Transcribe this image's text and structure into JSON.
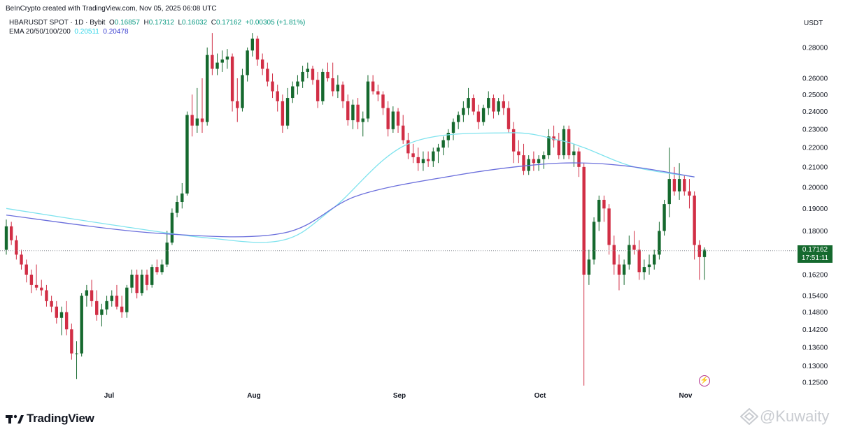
{
  "credit": "BeInCrypto created with TradingView.com, Nov 05, 2025 06:08 UTC",
  "legend": {
    "symbol": "HBARUSDT SPOT · 1D · Bybit",
    "open_label": "O",
    "open": "0.16857",
    "high_label": "H",
    "high": "0.17312",
    "low_label": "L",
    "low": "0.16032",
    "close_label": "C",
    "close": "0.17162",
    "change": "+0.00305 (+1.81%)",
    "ema_label": "EMA 20/50/100/200",
    "ema_a": "0.20511",
    "ema_b": "0.20478"
  },
  "currency": "USDT",
  "last_price": "0.17162",
  "countdown": "17:51:11",
  "brand": "TradingView",
  "watermark": "@Kuwaity",
  "colors": {
    "up": "#15692e",
    "down": "#d12e45",
    "ema_fast": "#7fe3ee",
    "ema_slow": "#6b6fdc"
  },
  "chart_data": {
    "type": "candlestick",
    "y_axis_scale": "log",
    "y_ticks": [
      "0.28000",
      "0.26000",
      "0.25000",
      "0.24000",
      "0.23000",
      "0.22000",
      "0.21000",
      "0.20000",
      "0.19000",
      "0.18000",
      "0.16200",
      "0.15400",
      "0.14800",
      "0.14200",
      "0.13600",
      "0.13000",
      "0.12500"
    ],
    "x_ticks": [
      "Jul",
      "Aug",
      "Sep",
      "Oct",
      "Nov"
    ],
    "candles": [
      [
        0.172,
        0.185,
        0.17,
        0.182
      ],
      [
        0.182,
        0.184,
        0.174,
        0.176
      ],
      [
        0.176,
        0.178,
        0.168,
        0.17
      ],
      [
        0.17,
        0.172,
        0.164,
        0.166
      ],
      [
        0.166,
        0.168,
        0.159,
        0.162
      ],
      [
        0.162,
        0.164,
        0.155,
        0.158
      ],
      [
        0.158,
        0.166,
        0.156,
        0.157
      ],
      [
        0.157,
        0.16,
        0.154,
        0.156
      ],
      [
        0.156,
        0.158,
        0.15,
        0.152
      ],
      [
        0.152,
        0.154,
        0.148,
        0.15
      ],
      [
        0.15,
        0.152,
        0.144,
        0.146
      ],
      [
        0.146,
        0.15,
        0.14,
        0.148
      ],
      [
        0.148,
        0.152,
        0.14,
        0.142
      ],
      [
        0.142,
        0.144,
        0.132,
        0.134
      ],
      [
        0.134,
        0.138,
        0.126,
        0.134
      ],
      [
        0.134,
        0.155,
        0.133,
        0.154
      ],
      [
        0.154,
        0.158,
        0.15,
        0.156
      ],
      [
        0.156,
        0.16,
        0.15,
        0.152
      ],
      [
        0.152,
        0.156,
        0.145,
        0.147
      ],
      [
        0.147,
        0.151,
        0.143,
        0.149
      ],
      [
        0.149,
        0.154,
        0.147,
        0.152
      ],
      [
        0.152,
        0.156,
        0.15,
        0.154
      ],
      [
        0.154,
        0.158,
        0.149,
        0.15
      ],
      [
        0.15,
        0.154,
        0.146,
        0.148
      ],
      [
        0.148,
        0.158,
        0.146,
        0.157
      ],
      [
        0.157,
        0.164,
        0.155,
        0.162
      ],
      [
        0.162,
        0.164,
        0.153,
        0.155
      ],
      [
        0.155,
        0.164,
        0.154,
        0.162
      ],
      [
        0.162,
        0.164,
        0.156,
        0.158
      ],
      [
        0.158,
        0.166,
        0.157,
        0.165
      ],
      [
        0.165,
        0.168,
        0.162,
        0.163
      ],
      [
        0.163,
        0.168,
        0.162,
        0.166
      ],
      [
        0.166,
        0.18,
        0.165,
        0.175
      ],
      [
        0.175,
        0.19,
        0.174,
        0.188
      ],
      [
        0.188,
        0.196,
        0.186,
        0.193
      ],
      [
        0.193,
        0.202,
        0.19,
        0.197
      ],
      [
        0.197,
        0.24,
        0.196,
        0.238
      ],
      [
        0.238,
        0.25,
        0.226,
        0.232
      ],
      [
        0.232,
        0.254,
        0.228,
        0.236
      ],
      [
        0.236,
        0.26,
        0.228,
        0.234
      ],
      [
        0.234,
        0.28,
        0.232,
        0.275
      ],
      [
        0.275,
        0.29,
        0.262,
        0.266
      ],
      [
        0.266,
        0.276,
        0.262,
        0.27
      ],
      [
        0.27,
        0.278,
        0.264,
        0.272
      ],
      [
        0.272,
        0.279,
        0.266,
        0.274
      ],
      [
        0.274,
        0.276,
        0.24,
        0.246
      ],
      [
        0.246,
        0.26,
        0.234,
        0.242
      ],
      [
        0.242,
        0.266,
        0.24,
        0.262
      ],
      [
        0.262,
        0.28,
        0.258,
        0.278
      ],
      [
        0.278,
        0.29,
        0.274,
        0.286
      ],
      [
        0.286,
        0.288,
        0.268,
        0.272
      ],
      [
        0.272,
        0.276,
        0.262,
        0.266
      ],
      [
        0.266,
        0.27,
        0.255,
        0.258
      ],
      [
        0.258,
        0.263,
        0.248,
        0.252
      ],
      [
        0.252,
        0.256,
        0.24,
        0.246
      ],
      [
        0.246,
        0.25,
        0.228,
        0.232
      ],
      [
        0.232,
        0.254,
        0.23,
        0.248
      ],
      [
        0.248,
        0.258,
        0.245,
        0.255
      ],
      [
        0.255,
        0.262,
        0.25,
        0.258
      ],
      [
        0.258,
        0.268,
        0.254,
        0.264
      ],
      [
        0.264,
        0.27,
        0.26,
        0.266
      ],
      [
        0.266,
        0.268,
        0.256,
        0.259
      ],
      [
        0.259,
        0.264,
        0.242,
        0.246
      ],
      [
        0.246,
        0.266,
        0.244,
        0.264
      ],
      [
        0.264,
        0.27,
        0.258,
        0.26
      ],
      [
        0.26,
        0.27,
        0.249,
        0.252
      ],
      [
        0.252,
        0.262,
        0.248,
        0.256
      ],
      [
        0.256,
        0.258,
        0.242,
        0.246
      ],
      [
        0.246,
        0.25,
        0.232,
        0.235
      ],
      [
        0.235,
        0.247,
        0.23,
        0.244
      ],
      [
        0.244,
        0.248,
        0.23,
        0.234
      ],
      [
        0.234,
        0.24,
        0.226,
        0.236
      ],
      [
        0.236,
        0.262,
        0.234,
        0.258
      ],
      [
        0.258,
        0.262,
        0.25,
        0.252
      ],
      [
        0.252,
        0.256,
        0.246,
        0.25
      ],
      [
        0.25,
        0.252,
        0.238,
        0.242
      ],
      [
        0.242,
        0.246,
        0.226,
        0.23
      ],
      [
        0.23,
        0.243,
        0.228,
        0.24
      ],
      [
        0.24,
        0.242,
        0.228,
        0.232
      ],
      [
        0.232,
        0.238,
        0.222,
        0.224
      ],
      [
        0.224,
        0.228,
        0.214,
        0.217
      ],
      [
        0.217,
        0.222,
        0.212,
        0.215
      ],
      [
        0.215,
        0.22,
        0.208,
        0.212
      ],
      [
        0.212,
        0.218,
        0.208,
        0.214
      ],
      [
        0.214,
        0.218,
        0.21,
        0.213
      ],
      [
        0.213,
        0.22,
        0.21,
        0.218
      ],
      [
        0.218,
        0.222,
        0.212,
        0.22
      ],
      [
        0.22,
        0.226,
        0.216,
        0.224
      ],
      [
        0.224,
        0.23,
        0.22,
        0.228
      ],
      [
        0.228,
        0.236,
        0.224,
        0.234
      ],
      [
        0.234,
        0.24,
        0.23,
        0.238
      ],
      [
        0.238,
        0.246,
        0.234,
        0.242
      ],
      [
        0.242,
        0.254,
        0.238,
        0.248
      ],
      [
        0.248,
        0.25,
        0.238,
        0.24
      ],
      [
        0.24,
        0.244,
        0.23,
        0.234
      ],
      [
        0.234,
        0.244,
        0.232,
        0.242
      ],
      [
        0.242,
        0.252,
        0.238,
        0.248
      ],
      [
        0.248,
        0.25,
        0.236,
        0.24
      ],
      [
        0.24,
        0.248,
        0.238,
        0.246
      ],
      [
        0.246,
        0.25,
        0.238,
        0.242
      ],
      [
        0.242,
        0.246,
        0.228,
        0.23
      ],
      [
        0.23,
        0.234,
        0.212,
        0.218
      ],
      [
        0.218,
        0.224,
        0.212,
        0.216
      ],
      [
        0.216,
        0.222,
        0.206,
        0.208
      ],
      [
        0.208,
        0.216,
        0.206,
        0.214
      ],
      [
        0.214,
        0.218,
        0.208,
        0.212
      ],
      [
        0.212,
        0.216,
        0.208,
        0.214
      ],
      [
        0.214,
        0.218,
        0.209,
        0.216
      ],
      [
        0.216,
        0.23,
        0.214,
        0.226
      ],
      [
        0.226,
        0.232,
        0.22,
        0.224
      ],
      [
        0.224,
        0.228,
        0.214,
        0.216
      ],
      [
        0.216,
        0.232,
        0.214,
        0.23
      ],
      [
        0.23,
        0.232,
        0.214,
        0.216
      ],
      [
        0.216,
        0.222,
        0.21,
        0.218
      ],
      [
        0.218,
        0.22,
        0.205,
        0.21
      ],
      [
        0.21,
        0.212,
        0.124,
        0.162
      ],
      [
        0.162,
        0.172,
        0.158,
        0.168
      ],
      [
        0.168,
        0.186,
        0.166,
        0.184
      ],
      [
        0.184,
        0.196,
        0.18,
        0.194
      ],
      [
        0.194,
        0.196,
        0.184,
        0.19
      ],
      [
        0.19,
        0.192,
        0.17,
        0.174
      ],
      [
        0.174,
        0.178,
        0.162,
        0.166
      ],
      [
        0.166,
        0.17,
        0.156,
        0.162
      ],
      [
        0.162,
        0.168,
        0.158,
        0.166
      ],
      [
        0.166,
        0.178,
        0.164,
        0.174
      ],
      [
        0.174,
        0.18,
        0.17,
        0.172
      ],
      [
        0.172,
        0.176,
        0.16,
        0.163
      ],
      [
        0.163,
        0.168,
        0.16,
        0.165
      ],
      [
        0.165,
        0.17,
        0.162,
        0.166
      ],
      [
        0.166,
        0.172,
        0.164,
        0.17
      ],
      [
        0.17,
        0.184,
        0.168,
        0.18
      ],
      [
        0.18,
        0.194,
        0.178,
        0.192
      ],
      [
        0.192,
        0.22,
        0.186,
        0.204
      ],
      [
        0.204,
        0.21,
        0.196,
        0.198
      ],
      [
        0.198,
        0.212,
        0.194,
        0.204
      ],
      [
        0.204,
        0.206,
        0.196,
        0.198
      ],
      [
        0.198,
        0.204,
        0.19,
        0.196
      ],
      [
        0.196,
        0.198,
        0.168,
        0.174
      ],
      [
        0.174,
        0.176,
        0.16,
        0.169
      ],
      [
        0.169,
        0.173,
        0.16,
        0.172
      ]
    ],
    "ema_fast_path": [
      [
        0,
        0.19
      ],
      [
        20,
        0.183
      ],
      [
        40,
        0.177
      ],
      [
        55,
        0.176
      ],
      [
        65,
        0.19
      ],
      [
        80,
        0.222
      ],
      [
        100,
        0.228
      ],
      [
        110,
        0.224
      ],
      [
        115,
        0.22
      ],
      [
        125,
        0.21
      ],
      [
        137,
        0.205
      ]
    ],
    "ema_slow_path": [
      [
        0,
        0.187
      ],
      [
        30,
        0.179
      ],
      [
        55,
        0.179
      ],
      [
        70,
        0.196
      ],
      [
        90,
        0.206
      ],
      [
        105,
        0.211
      ],
      [
        115,
        0.212
      ],
      [
        125,
        0.21
      ],
      [
        137,
        0.205
      ]
    ]
  }
}
